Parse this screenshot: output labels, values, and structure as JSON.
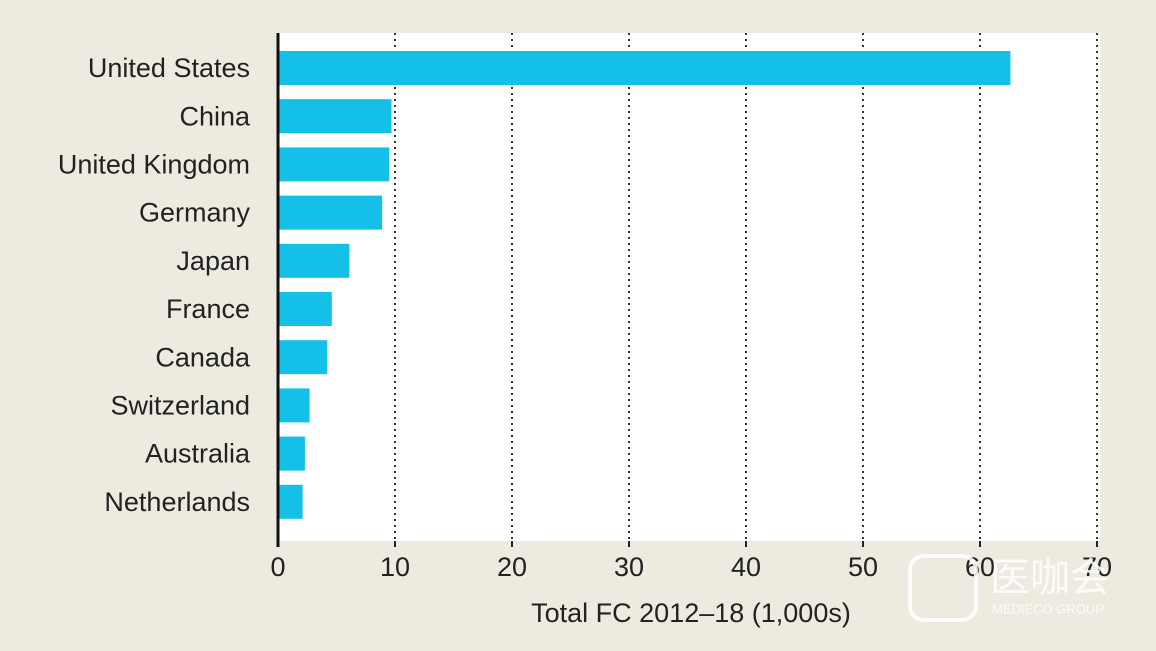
{
  "chart_data": {
    "type": "bar",
    "orientation": "horizontal",
    "categories": [
      "United States",
      "China",
      "United Kingdom",
      "Germany",
      "Japan",
      "France",
      "Canada",
      "Switzerland",
      "Australia",
      "Netherlands"
    ],
    "values": [
      62.6,
      9.7,
      9.5,
      8.9,
      6.1,
      4.6,
      4.2,
      2.7,
      2.3,
      2.1
    ],
    "color": "#14bfe8",
    "xlabel": "Total FC 2012–18 (1,000s)",
    "xlim": [
      0,
      70
    ],
    "xticks": [
      0,
      10,
      20,
      30,
      40,
      50,
      60,
      70
    ],
    "grid": true
  },
  "watermark": {
    "text": "医咖会",
    "subtext": "MEDIECO GROUP"
  }
}
